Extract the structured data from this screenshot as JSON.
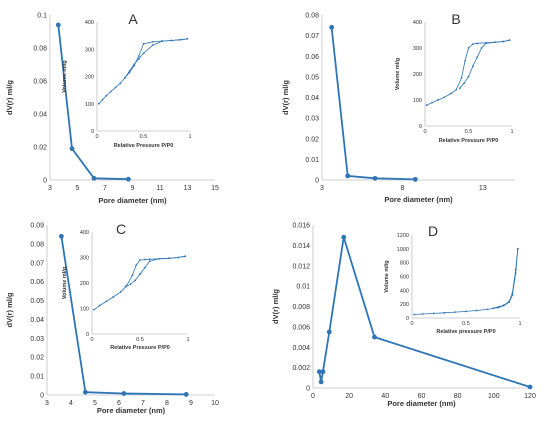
{
  "colors": {
    "series": "#2e75b6",
    "axis": "#bfbfbf",
    "text": "#333333"
  },
  "chart_data": [
    {
      "type": "line",
      "panel": "A",
      "xlabel": "Pore diameter (nm)",
      "ylabel": "dV(r) ml/g",
      "xlim": [
        3,
        15
      ],
      "ylim": [
        0,
        0.1
      ],
      "xticks": [
        "3",
        "5",
        "7",
        "9",
        "11",
        "13",
        "15"
      ],
      "yticks": [
        "0",
        "0.02",
        "0.04",
        "0.06",
        "0.08",
        "0.1"
      ],
      "series": [
        {
          "x": [
            3.6,
            4.6,
            6.2,
            8.7
          ],
          "y": [
            0.094,
            0.019,
            0.001,
            0.0005
          ]
        }
      ],
      "inset": {
        "type": "line",
        "xlabel": "Relative Pressure P/P0",
        "ylabel": "Volume ml/g",
        "xlim": [
          0,
          1
        ],
        "ylim": [
          0,
          400
        ],
        "xticks": [
          "0",
          "0.5",
          "1"
        ],
        "yticks": [
          "0",
          "100",
          "200",
          "300",
          "400"
        ],
        "series": [
          {
            "x": [
              0.02,
              0.06,
              0.1,
              0.15,
              0.2,
              0.25,
              0.3,
              0.35,
              0.4,
              0.45,
              0.5,
              0.6,
              0.7,
              0.8,
              0.9,
              0.97
            ],
            "y": [
              100,
              115,
              130,
              145,
              160,
              175,
              195,
              215,
              240,
              275,
              320,
              327,
              330,
              332,
              335,
              338
            ]
          },
          {
            "x": [
              0.97,
              0.9,
              0.8,
              0.7,
              0.6,
              0.5,
              0.45,
              0.4,
              0.35,
              0.3
            ],
            "y": [
              338,
              335,
              332,
              330,
              315,
              285,
              265,
              245,
              220,
              195
            ]
          }
        ]
      }
    },
    {
      "type": "line",
      "panel": "B",
      "xlabel": "Pore diameter (nm)",
      "ylabel": "dV(r) ml/g",
      "xlim": [
        3,
        15
      ],
      "ylim": [
        0,
        0.08
      ],
      "xticks": [
        "3",
        "8",
        "13"
      ],
      "yticks": [
        "0",
        "0.01",
        "0.02",
        "0.03",
        "0.04",
        "0.05",
        "0.06",
        "0.07",
        "0.08"
      ],
      "series": [
        {
          "x": [
            3.6,
            4.6,
            6.3,
            8.8
          ],
          "y": [
            0.074,
            0.002,
            0.0008,
            0.0003
          ]
        }
      ],
      "inset": {
        "type": "line",
        "xlabel": "Relative Pressure P/P0",
        "ylabel": "Volume ml/g",
        "xlim": [
          0,
          1
        ],
        "ylim": [
          0,
          400
        ],
        "xticks": [
          "0",
          "0.5",
          "1"
        ],
        "yticks": [
          "0",
          "100",
          "200",
          "300",
          "400"
        ],
        "series": [
          {
            "x": [
              0.02,
              0.08,
              0.15,
              0.22,
              0.3,
              0.36,
              0.42,
              0.46,
              0.5,
              0.55,
              0.6,
              0.7,
              0.8,
              0.9,
              0.97
            ],
            "y": [
              80,
              90,
              100,
              110,
              125,
              140,
              185,
              250,
              300,
              315,
              318,
              320,
              322,
              325,
              330
            ]
          },
          {
            "x": [
              0.97,
              0.9,
              0.8,
              0.7,
              0.65,
              0.6,
              0.55,
              0.5,
              0.45,
              0.4
            ],
            "y": [
              330,
              325,
              322,
              318,
              300,
              265,
              230,
              190,
              165,
              145
            ]
          }
        ]
      }
    },
    {
      "type": "line",
      "panel": "C",
      "xlabel": "Pore diameter (nm)",
      "ylabel": "dV(r) ml/g",
      "xlim": [
        3,
        10
      ],
      "ylim": [
        0,
        0.09
      ],
      "xticks": [
        "3",
        "4",
        "5",
        "6",
        "7",
        "8",
        "9",
        "10"
      ],
      "yticks": [
        "0",
        "0.01",
        "0.02",
        "0.03",
        "0.04",
        "0.05",
        "0.06",
        "0.07",
        "0.08",
        "0.09"
      ],
      "series": [
        {
          "x": [
            3.6,
            4.6,
            6.2,
            8.8
          ],
          "y": [
            0.084,
            0.0015,
            0.0008,
            0.0003
          ]
        }
      ],
      "inset": {
        "type": "line",
        "xlabel": "Relative Pressure P/P0",
        "ylabel": "Volume ml/g",
        "xlim": [
          0,
          1
        ],
        "ylim": [
          0,
          400
        ],
        "xticks": [
          "0",
          "0.5",
          "1"
        ],
        "yticks": [
          "0",
          "100",
          "200",
          "300",
          "400"
        ],
        "series": [
          {
            "x": [
              0.02,
              0.08,
              0.15,
              0.22,
              0.3,
              0.36,
              0.42,
              0.46,
              0.5,
              0.55,
              0.6,
              0.7,
              0.8,
              0.9,
              0.97
            ],
            "y": [
              95,
              112,
              128,
              145,
              165,
              190,
              230,
              270,
              290,
              292,
              293,
              295,
              297,
              300,
              305
            ]
          },
          {
            "x": [
              0.97,
              0.9,
              0.8,
              0.7,
              0.6,
              0.55,
              0.5,
              0.45,
              0.4,
              0.35
            ],
            "y": [
              305,
              300,
              297,
              295,
              285,
              260,
              235,
              210,
              195,
              185
            ]
          }
        ]
      }
    },
    {
      "type": "line",
      "panel": "D",
      "xlabel": "Pore diameter (nm)",
      "ylabel": "dV(r) ml/g",
      "xlim": [
        0,
        120
      ],
      "ylim": [
        0,
        0.016
      ],
      "xticks": [
        "0",
        "20",
        "40",
        "60",
        "80",
        "100",
        "120"
      ],
      "yticks": [
        "0",
        "0.002",
        "0.004",
        "0.006",
        "0.008",
        "0.01",
        "0.012",
        "0.014",
        "0.016"
      ],
      "series": [
        {
          "x": [
            3.5,
            4.5,
            5.5,
            9,
            17,
            34,
            120
          ],
          "y": [
            0.0016,
            0.0006,
            0.0016,
            0.0055,
            0.0148,
            0.005,
            0.0001
          ]
        }
      ],
      "inset": {
        "type": "line",
        "xlabel": "Relative pressure P/P0",
        "ylabel": "Volume ml/g",
        "xlim": [
          0,
          1
        ],
        "ylim": [
          0,
          1200
        ],
        "xticks": [
          "0",
          "0.5",
          "1"
        ],
        "yticks": [
          "0",
          "200",
          "400",
          "600",
          "800",
          "1000",
          "1200"
        ],
        "series": [
          {
            "x": [
              0.02,
              0.1,
              0.2,
              0.3,
              0.4,
              0.5,
              0.6,
              0.7,
              0.8,
              0.85,
              0.9,
              0.93,
              0.96,
              0.98
            ],
            "y": [
              50,
              58,
              66,
              75,
              85,
              95,
              108,
              125,
              150,
              180,
              230,
              330,
              650,
              1000
            ]
          },
          {
            "x": [
              0.98,
              0.96,
              0.93,
              0.9,
              0.85,
              0.8,
              0.75
            ],
            "y": [
              1000,
              700,
              360,
              240,
              185,
              160,
              140
            ]
          }
        ]
      }
    }
  ]
}
